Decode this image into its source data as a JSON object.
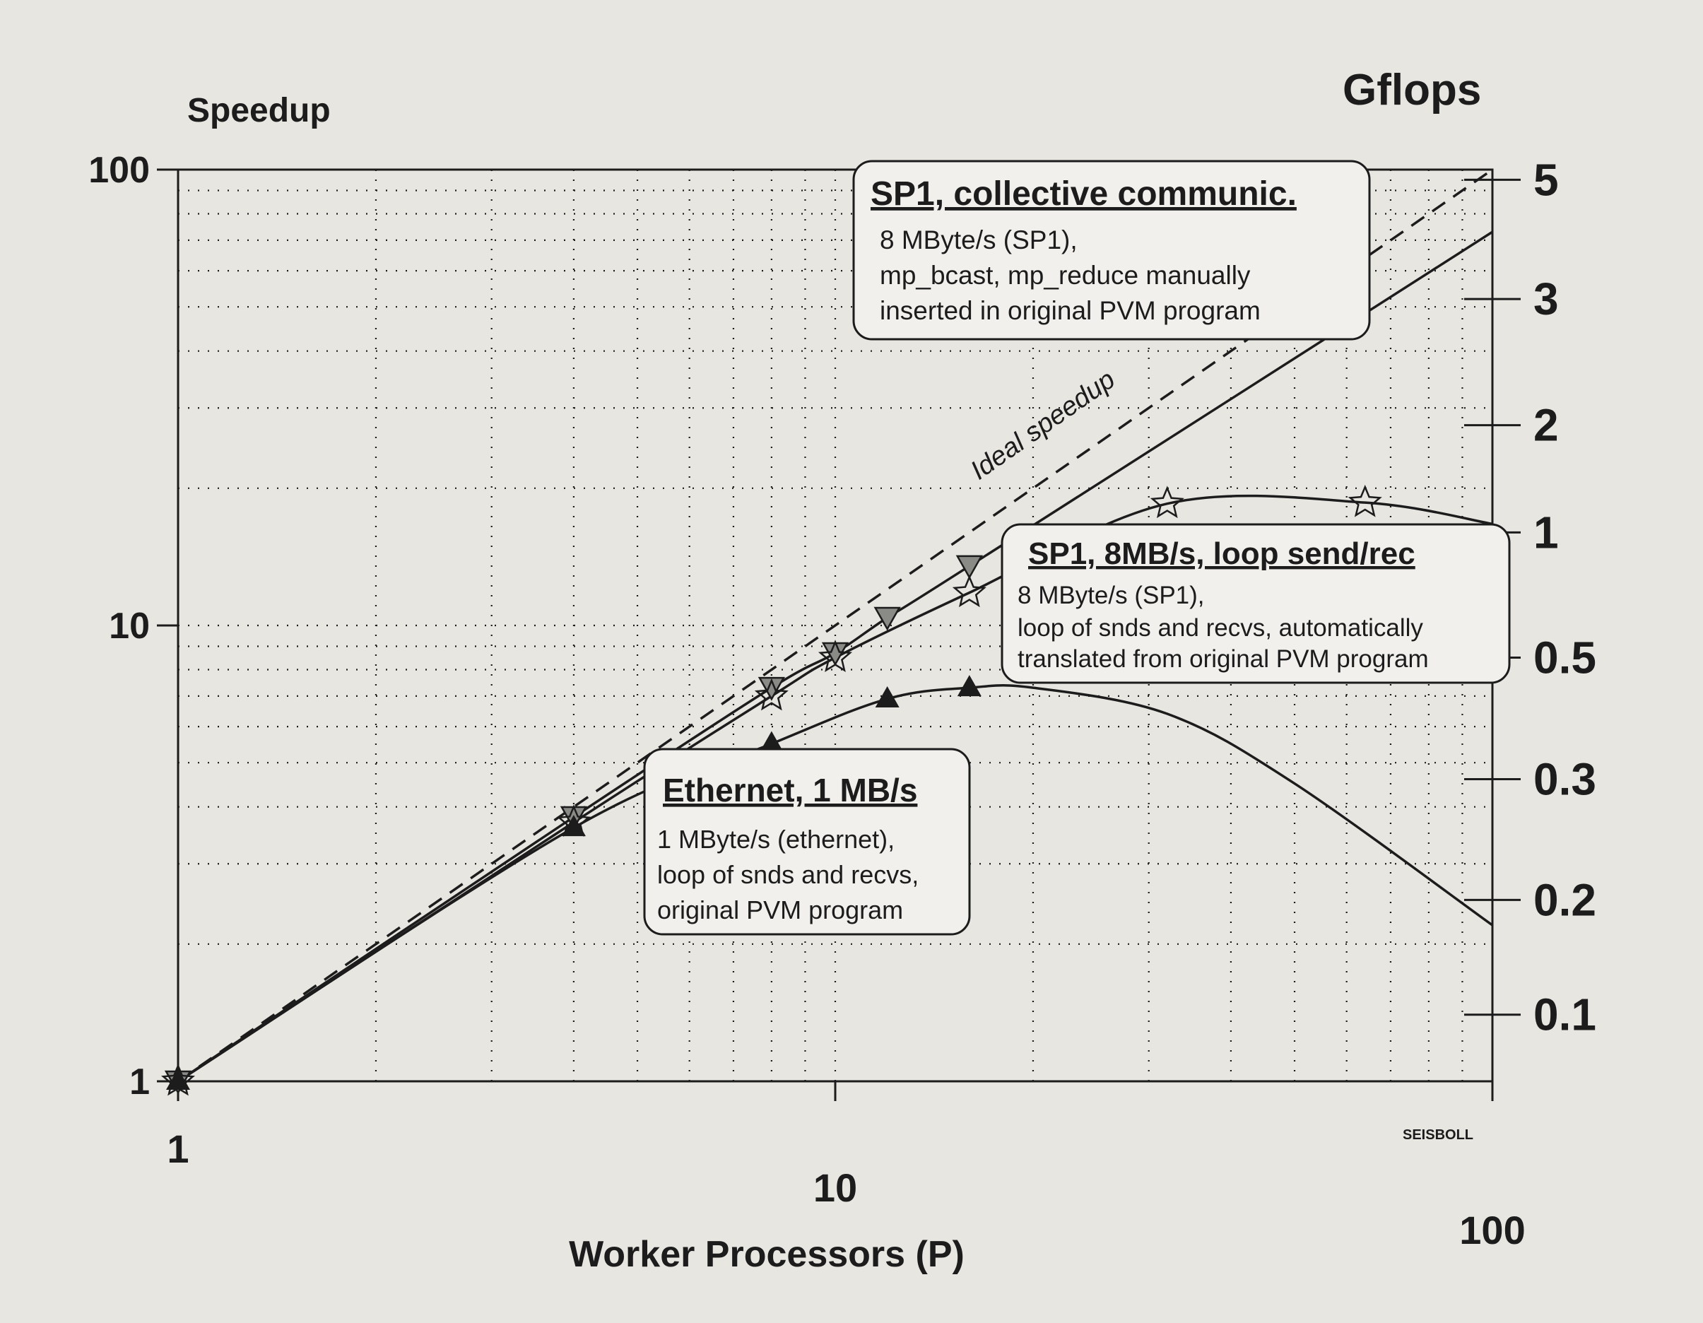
{
  "chart_data": {
    "type": "line",
    "x_scale": "log",
    "y_scale": "log",
    "xlabel": "Worker Processors (P)",
    "ylabel": "Speedup",
    "y2label": "Gflops",
    "xlim": [
      1,
      100
    ],
    "ylim": [
      1,
      100
    ],
    "x_ticks": [
      {
        "value": 1,
        "label": "1"
      },
      {
        "value": 10,
        "label": "10"
      },
      {
        "value": 100,
        "label": "100"
      }
    ],
    "y_ticks": [
      {
        "value": 1,
        "label": "1"
      },
      {
        "value": 10,
        "label": "10"
      },
      {
        "value": 100,
        "label": "100"
      }
    ],
    "y2_ticks": [
      {
        "speedup": 95,
        "label": "5"
      },
      {
        "speedup": 52,
        "label": "3"
      },
      {
        "speedup": 27.5,
        "label": "2"
      },
      {
        "speedup": 16,
        "label": "1"
      },
      {
        "speedup": 8.5,
        "label": "0.5"
      },
      {
        "speedup": 4.6,
        "label": "0.3"
      },
      {
        "speedup": 2.5,
        "label": "0.2"
      },
      {
        "speedup": 1.4,
        "label": "0.1"
      }
    ],
    "grid": true,
    "series": [
      {
        "key": "ideal",
        "style": "dashed",
        "marker": "none",
        "x": [
          1,
          100
        ],
        "y": [
          1,
          100
        ],
        "annotation": "Ideal speedup"
      },
      {
        "key": "collective",
        "style": "solid",
        "marker": "triangle-down",
        "x": [
          1,
          4,
          8,
          10,
          12,
          16,
          100
        ],
        "y": [
          1,
          3.8,
          7.3,
          8.7,
          10.4,
          13.5,
          73
        ],
        "marked_x": [
          1,
          4,
          8,
          10,
          12,
          16
        ]
      },
      {
        "key": "loop",
        "style": "solid",
        "marker": "star",
        "x": [
          1,
          4,
          8,
          10,
          16,
          32,
          64,
          100
        ],
        "y": [
          1,
          3.7,
          7.0,
          8.5,
          11.8,
          18.5,
          18.6,
          16.7
        ],
        "marked_x": [
          1,
          4,
          8,
          10,
          16,
          32,
          64
        ]
      },
      {
        "key": "ethernet",
        "style": "solid",
        "marker": "triangle-up",
        "x": [
          1,
          4,
          8,
          12,
          16,
          20,
          32,
          50,
          100
        ],
        "y": [
          1,
          3.6,
          5.5,
          6.9,
          7.3,
          7.3,
          6.4,
          4.5,
          2.2
        ],
        "marked_x": [
          1,
          4,
          8,
          12,
          16
        ]
      }
    ],
    "annotations": {
      "collective": {
        "title": "SP1, collective communic.",
        "lines": [
          "8 MByte/s (SP1),",
          "mp_bcast, mp_reduce manually",
          "inserted in original PVM program"
        ]
      },
      "loop": {
        "title": "SP1, 8MB/s, loop send/rec",
        "lines": [
          "8 MByte/s (SP1),",
          "loop of snds and recvs, automatically",
          "translated from original PVM program"
        ]
      },
      "ethernet": {
        "title": "Ethernet, 1 MB/s",
        "lines": [
          "1 MByte/s (ethernet),",
          "loop of snds and recvs,",
          "original PVM program"
        ]
      }
    },
    "credit": "SEISBOLL"
  },
  "colors": {
    "background": "#e7e6e1",
    "ink": "#1c1c1c",
    "box_fill": "#f1f0ec"
  }
}
